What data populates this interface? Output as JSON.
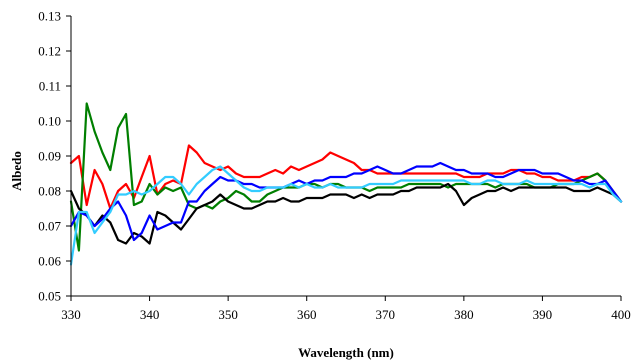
{
  "chart_data": {
    "type": "line",
    "title": "",
    "xlabel": "Wavelength (nm)",
    "ylabel": "Albedo",
    "xlim": [
      330,
      400
    ],
    "ylim": [
      0.05,
      0.13
    ],
    "xticks": [
      330,
      340,
      350,
      360,
      370,
      380,
      390,
      400
    ],
    "yticks": [
      0.05,
      0.06,
      0.07,
      0.08,
      0.09,
      0.1,
      0.11,
      0.12,
      0.13
    ],
    "ytick_labels": [
      "0.05",
      "0.06",
      "0.07",
      "0.08",
      "0.09",
      "0.10",
      "0.11",
      "0.12",
      "0.13"
    ],
    "grid": false,
    "legend": "none",
    "series": [
      {
        "color": "#ff0000",
        "x": [
          330,
          331,
          332,
          333,
          334,
          335,
          336,
          337,
          338,
          339,
          340,
          341,
          342,
          343,
          344,
          345,
          346,
          347,
          348,
          349,
          350,
          351,
          352,
          353,
          354,
          355,
          356,
          357,
          358,
          359,
          360,
          361,
          362,
          363,
          364,
          365,
          366,
          367,
          368,
          369,
          370,
          371,
          372,
          373,
          374,
          375,
          376,
          377,
          378,
          379,
          380,
          381,
          382,
          383,
          384,
          385,
          386,
          387,
          388,
          389,
          390,
          391,
          392,
          393,
          394,
          395,
          396,
          397,
          398,
          399,
          400
        ],
        "y": [
          0.088,
          0.09,
          0.076,
          0.086,
          0.082,
          0.075,
          0.08,
          0.082,
          0.078,
          0.084,
          0.09,
          0.079,
          0.082,
          0.083,
          0.082,
          0.093,
          0.091,
          0.088,
          0.087,
          0.086,
          0.087,
          0.085,
          0.084,
          0.084,
          0.084,
          0.085,
          0.086,
          0.085,
          0.087,
          0.086,
          0.087,
          0.088,
          0.089,
          0.091,
          0.09,
          0.089,
          0.088,
          0.086,
          0.086,
          0.085,
          0.085,
          0.085,
          0.085,
          0.085,
          0.085,
          0.085,
          0.085,
          0.085,
          0.085,
          0.085,
          0.084,
          0.084,
          0.084,
          0.085,
          0.085,
          0.085,
          0.086,
          0.086,
          0.085,
          0.085,
          0.084,
          0.084,
          0.083,
          0.083,
          0.083,
          0.084,
          0.084,
          0.085,
          0.083,
          0.08,
          0.077
        ]
      },
      {
        "color": "#007f00",
        "x": [
          330,
          331,
          332,
          333,
          334,
          335,
          336,
          337,
          338,
          339,
          340,
          341,
          342,
          343,
          344,
          345,
          346,
          347,
          348,
          349,
          350,
          351,
          352,
          353,
          354,
          355,
          356,
          357,
          358,
          359,
          360,
          361,
          362,
          363,
          364,
          365,
          366,
          367,
          368,
          369,
          370,
          371,
          372,
          373,
          374,
          375,
          376,
          377,
          378,
          379,
          380,
          381,
          382,
          383,
          384,
          385,
          386,
          387,
          388,
          389,
          390,
          391,
          392,
          393,
          394,
          395,
          396,
          397,
          398,
          399,
          400
        ],
        "y": [
          0.077,
          0.063,
          0.105,
          0.097,
          0.091,
          0.086,
          0.098,
          0.102,
          0.076,
          0.077,
          0.082,
          0.079,
          0.081,
          0.08,
          0.081,
          0.076,
          0.075,
          0.076,
          0.075,
          0.077,
          0.078,
          0.08,
          0.079,
          0.077,
          0.077,
          0.079,
          0.08,
          0.081,
          0.081,
          0.081,
          0.082,
          0.082,
          0.081,
          0.082,
          0.082,
          0.081,
          0.081,
          0.081,
          0.08,
          0.081,
          0.081,
          0.081,
          0.081,
          0.082,
          0.082,
          0.082,
          0.082,
          0.082,
          0.081,
          0.082,
          0.082,
          0.082,
          0.082,
          0.082,
          0.081,
          0.082,
          0.082,
          0.082,
          0.082,
          0.081,
          0.081,
          0.081,
          0.082,
          0.082,
          0.082,
          0.083,
          0.084,
          0.085,
          0.083,
          0.08,
          0.077
        ]
      },
      {
        "color": "#000000",
        "x": [
          330,
          331,
          332,
          333,
          334,
          335,
          336,
          337,
          338,
          339,
          340,
          341,
          342,
          343,
          344,
          345,
          346,
          347,
          348,
          349,
          350,
          351,
          352,
          353,
          354,
          355,
          356,
          357,
          358,
          359,
          360,
          361,
          362,
          363,
          364,
          365,
          366,
          367,
          368,
          369,
          370,
          371,
          372,
          373,
          374,
          375,
          376,
          377,
          378,
          379,
          380,
          381,
          382,
          383,
          384,
          385,
          386,
          387,
          388,
          389,
          390,
          391,
          392,
          393,
          394,
          395,
          396,
          397,
          398,
          399,
          400
        ],
        "y": [
          0.08,
          0.075,
          0.073,
          0.07,
          0.073,
          0.071,
          0.066,
          0.065,
          0.068,
          0.067,
          0.065,
          0.074,
          0.073,
          0.071,
          0.069,
          0.072,
          0.075,
          0.076,
          0.077,
          0.079,
          0.077,
          0.076,
          0.075,
          0.075,
          0.076,
          0.077,
          0.077,
          0.078,
          0.077,
          0.077,
          0.078,
          0.078,
          0.078,
          0.079,
          0.079,
          0.079,
          0.078,
          0.079,
          0.078,
          0.079,
          0.079,
          0.079,
          0.08,
          0.08,
          0.081,
          0.081,
          0.081,
          0.081,
          0.082,
          0.08,
          0.076,
          0.078,
          0.079,
          0.08,
          0.08,
          0.081,
          0.08,
          0.081,
          0.081,
          0.081,
          0.081,
          0.081,
          0.081,
          0.081,
          0.08,
          0.08,
          0.08,
          0.081,
          0.08,
          0.079,
          0.077
        ]
      },
      {
        "color": "#0000ff",
        "x": [
          330,
          331,
          332,
          333,
          334,
          335,
          336,
          337,
          338,
          339,
          340,
          341,
          342,
          343,
          344,
          345,
          346,
          347,
          348,
          349,
          350,
          351,
          352,
          353,
          354,
          355,
          356,
          357,
          358,
          359,
          360,
          361,
          362,
          363,
          364,
          365,
          366,
          367,
          368,
          369,
          370,
          371,
          372,
          373,
          374,
          375,
          376,
          377,
          378,
          379,
          380,
          381,
          382,
          383,
          384,
          385,
          386,
          387,
          388,
          389,
          390,
          391,
          392,
          393,
          394,
          395,
          396,
          397,
          398,
          399,
          400
        ],
        "y": [
          0.07,
          0.074,
          0.073,
          0.07,
          0.072,
          0.075,
          0.077,
          0.073,
          0.066,
          0.068,
          0.073,
          0.069,
          0.07,
          0.071,
          0.071,
          0.077,
          0.077,
          0.08,
          0.082,
          0.084,
          0.083,
          0.083,
          0.082,
          0.082,
          0.081,
          0.081,
          0.081,
          0.081,
          0.082,
          0.083,
          0.082,
          0.083,
          0.083,
          0.084,
          0.084,
          0.084,
          0.085,
          0.085,
          0.086,
          0.087,
          0.086,
          0.085,
          0.085,
          0.086,
          0.087,
          0.087,
          0.087,
          0.088,
          0.087,
          0.086,
          0.086,
          0.085,
          0.085,
          0.085,
          0.084,
          0.084,
          0.085,
          0.086,
          0.086,
          0.086,
          0.085,
          0.085,
          0.085,
          0.084,
          0.083,
          0.083,
          0.082,
          0.082,
          0.083,
          0.08,
          0.077
        ]
      },
      {
        "color": "#33ccff",
        "x": [
          330,
          331,
          332,
          333,
          334,
          335,
          336,
          337,
          338,
          339,
          340,
          341,
          342,
          343,
          344,
          345,
          346,
          347,
          348,
          349,
          350,
          351,
          352,
          353,
          354,
          355,
          356,
          357,
          358,
          359,
          360,
          361,
          362,
          363,
          364,
          365,
          366,
          367,
          368,
          369,
          370,
          371,
          372,
          373,
          374,
          375,
          376,
          377,
          378,
          379,
          380,
          381,
          382,
          383,
          384,
          385,
          386,
          387,
          388,
          389,
          390,
          391,
          392,
          393,
          394,
          395,
          396,
          397,
          398,
          399,
          400
        ],
        "y": [
          0.059,
          0.074,
          0.074,
          0.068,
          0.071,
          0.074,
          0.079,
          0.079,
          0.08,
          0.079,
          0.08,
          0.082,
          0.084,
          0.084,
          0.082,
          0.079,
          0.082,
          0.084,
          0.086,
          0.087,
          0.085,
          0.083,
          0.081,
          0.08,
          0.08,
          0.081,
          0.081,
          0.081,
          0.082,
          0.081,
          0.082,
          0.081,
          0.081,
          0.082,
          0.081,
          0.081,
          0.081,
          0.081,
          0.082,
          0.082,
          0.082,
          0.082,
          0.083,
          0.083,
          0.083,
          0.083,
          0.083,
          0.083,
          0.083,
          0.083,
          0.083,
          0.082,
          0.082,
          0.083,
          0.083,
          0.082,
          0.082,
          0.082,
          0.083,
          0.082,
          0.082,
          0.082,
          0.082,
          0.082,
          0.082,
          0.082,
          0.081,
          0.082,
          0.082,
          0.079,
          0.077
        ]
      }
    ]
  }
}
